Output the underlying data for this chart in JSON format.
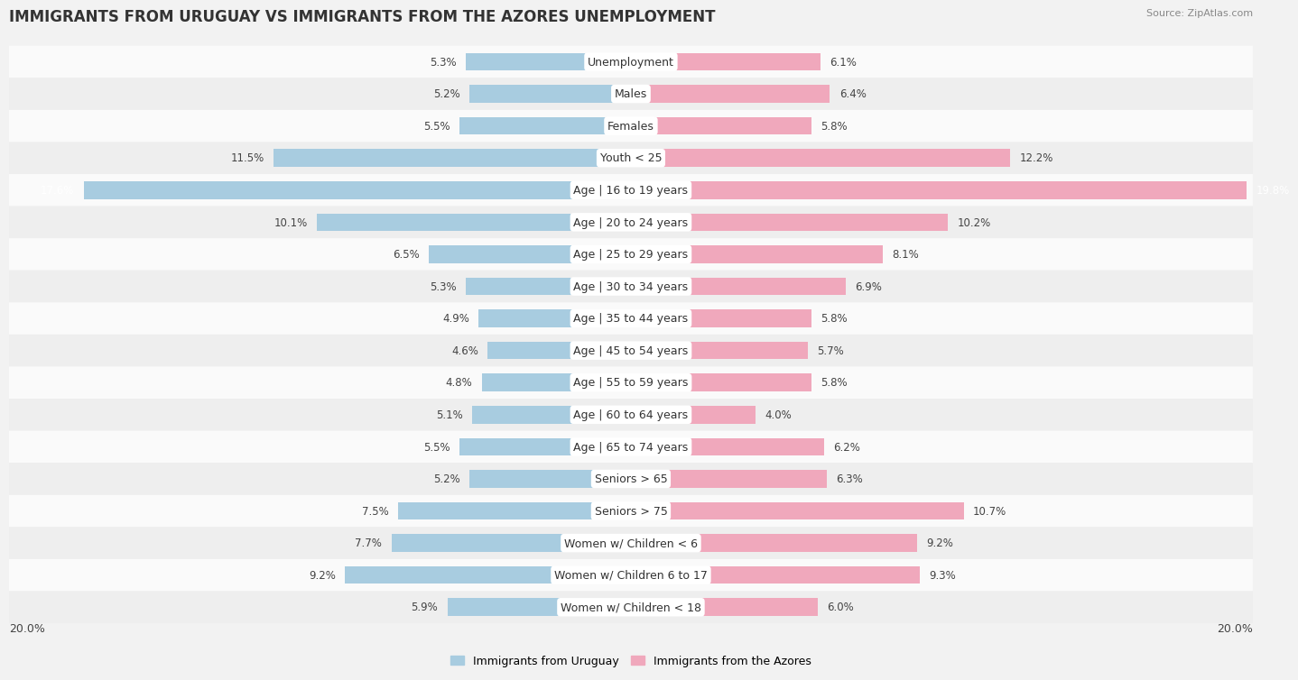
{
  "title": "IMMIGRANTS FROM URUGUAY VS IMMIGRANTS FROM THE AZORES UNEMPLOYMENT",
  "source": "Source: ZipAtlas.com",
  "categories": [
    "Unemployment",
    "Males",
    "Females",
    "Youth < 25",
    "Age | 16 to 19 years",
    "Age | 20 to 24 years",
    "Age | 25 to 29 years",
    "Age | 30 to 34 years",
    "Age | 35 to 44 years",
    "Age | 45 to 54 years",
    "Age | 55 to 59 years",
    "Age | 60 to 64 years",
    "Age | 65 to 74 years",
    "Seniors > 65",
    "Seniors > 75",
    "Women w/ Children < 6",
    "Women w/ Children 6 to 17",
    "Women w/ Children < 18"
  ],
  "uruguay_values": [
    5.3,
    5.2,
    5.5,
    11.5,
    17.6,
    10.1,
    6.5,
    5.3,
    4.9,
    4.6,
    4.8,
    5.1,
    5.5,
    5.2,
    7.5,
    7.7,
    9.2,
    5.9
  ],
  "azores_values": [
    6.1,
    6.4,
    5.8,
    12.2,
    19.8,
    10.2,
    8.1,
    6.9,
    5.8,
    5.7,
    5.8,
    4.0,
    6.2,
    6.3,
    10.7,
    9.2,
    9.3,
    6.0
  ],
  "uruguay_color": "#a8cce0",
  "azores_color": "#f0a8bc",
  "bar_height": 0.55,
  "xlim_abs": 20.0,
  "legend_label_left": "Immigrants from Uruguay",
  "legend_label_right": "Immigrants from the Azores",
  "background_color": "#f2f2f2",
  "row_colors": [
    "#fafafa",
    "#eeeeee"
  ],
  "title_fontsize": 12,
  "label_fontsize": 9,
  "value_fontsize": 8.5,
  "source_fontsize": 8
}
